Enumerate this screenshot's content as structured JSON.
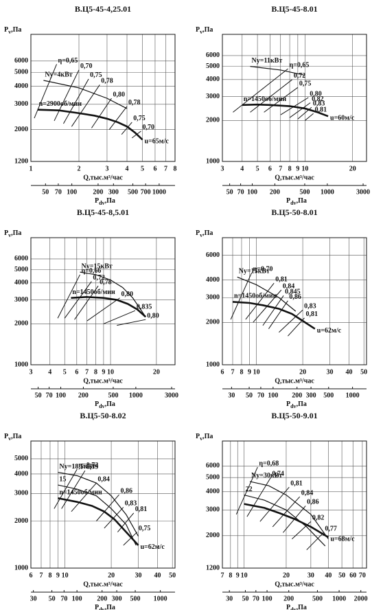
{
  "chart_data": [
    {
      "type": "line",
      "title": "В.Ц5-45-4,25.01",
      "y_label": {
        "main": "P",
        "sub": "v",
        "unit": ",Па"
      },
      "x_label": "Q,тыс.м³/час",
      "x2_label": {
        "main": "P",
        "sub": "dv",
        "unit": ",Па"
      },
      "log_x": true,
      "log_y": true,
      "grid": true,
      "xlim": [
        1,
        8
      ],
      "xticks": [
        1,
        2,
        3,
        4,
        5,
        6,
        7,
        8
      ],
      "ylim": [
        1200,
        9200
      ],
      "yticks": [
        1200,
        2000,
        3000,
        4000,
        5000,
        6000
      ],
      "x2lim": [
        34,
        1520
      ],
      "x2ticks": [
        50,
        70,
        100,
        200,
        300,
        500,
        700,
        1000
      ],
      "series": [
        {
          "name": "n=2900об/мин",
          "end_label": "u=65м/с",
          "x": [
            1.1,
            1.5,
            2,
            2.5,
            3,
            3.5,
            4,
            4.5,
            5
          ],
          "values": [
            2750,
            2720,
            2600,
            2500,
            2380,
            2250,
            2100,
            1900,
            1700
          ]
        },
        {
          "name": "Nу=4кВт",
          "x": [
            1.2,
            2,
            3,
            4
          ],
          "values": [
            4400,
            3900,
            3300,
            2800
          ]
        }
      ],
      "efficiency_lines": [
        {
          "label": "η=0,65",
          "x": [
            1.05,
            1.45
          ],
          "values": [
            2400,
            5700
          ]
        },
        {
          "label": "0,70",
          "x": [
            1.4,
            2.0
          ],
          "values": [
            2300,
            5200
          ]
        },
        {
          "label": "0,75",
          "x": [
            1.6,
            2.3
          ],
          "values": [
            2200,
            4500
          ]
        },
        {
          "label": "0,78",
          "x": [
            1.8,
            2.7
          ],
          "values": [
            2100,
            4100
          ]
        },
        {
          "label": "0,80",
          "x": [
            2.4,
            3.2
          ],
          "values": [
            2050,
            3300
          ]
        },
        {
          "label": "0,78",
          "x": [
            3.1,
            4.0
          ],
          "values": [
            2000,
            2900
          ]
        },
        {
          "label": "0,75",
          "x": [
            3.7,
            4.3
          ],
          "values": [
            1850,
            2250
          ]
        },
        {
          "label": "0,70",
          "x": [
            4.3,
            4.9
          ],
          "values": [
            1750,
            1950
          ]
        }
      ]
    },
    {
      "type": "line",
      "title": "В.Ц5-45-8.01",
      "y_label": {
        "main": "P",
        "sub": "v",
        "unit": ",Па"
      },
      "x_label": "Q,тыс.м³/час",
      "x2_label": {
        "main": "P",
        "sub": "dv",
        "unit": ",Па"
      },
      "log_x": true,
      "log_y": true,
      "grid": true,
      "xlim": [
        3,
        24.5
      ],
      "xticks": [
        3,
        4,
        5,
        6,
        7,
        8,
        9,
        10,
        20
      ],
      "ylim": [
        1000,
        8600
      ],
      "yticks": [
        1000,
        2000,
        3000,
        4000,
        5000,
        6000
      ],
      "x2lim": [
        40,
        3330
      ],
      "x2ticks": [
        50,
        70,
        100,
        200,
        500,
        1000,
        3000
      ],
      "series": [
        {
          "name": "n=1450об/мин",
          "end_label": "u=60м/с",
          "x": [
            4,
            5,
            6,
            8,
            10,
            12,
            14
          ],
          "values": [
            2600,
            2620,
            2600,
            2550,
            2450,
            2300,
            2150
          ]
        },
        {
          "name": "Nу=11кВт",
          "x": [
            4.5,
            7,
            10
          ],
          "values": [
            5000,
            4700,
            4300
          ]
        }
      ],
      "efficiency_lines": [
        {
          "label": "η=0,65",
          "x": [
            3.5,
            7.8
          ],
          "values": [
            2300,
            4800
          ]
        },
        {
          "label": "0,72",
          "x": [
            4.5,
            8.3
          ],
          "values": [
            2300,
            4000
          ]
        },
        {
          "label": "0,75",
          "x": [
            5.5,
            9
          ],
          "values": [
            2300,
            3500
          ]
        },
        {
          "label": "0,80",
          "x": [
            7,
            10.5
          ],
          "values": [
            2200,
            2950
          ]
        },
        {
          "label": "0,82",
          "x": [
            8,
            10.8
          ],
          "values": [
            2100,
            2700
          ]
        },
        {
          "label": "0,83",
          "x": [
            9,
            11
          ],
          "values": [
            2050,
            2500
          ]
        },
        {
          "label": "0,81",
          "x": [
            10,
            11.3
          ],
          "values": [
            2000,
            2250
          ]
        }
      ]
    },
    {
      "type": "line",
      "title": "В.Ц5-45-8,5.01",
      "y_label": {
        "main": "P",
        "sub": "v",
        "unit": ",Па"
      },
      "x_label": "Q,тыс.м³/час",
      "x2_label": {
        "main": "P",
        "sub": "dv",
        "unit": ",Па"
      },
      "log_x": true,
      "log_y": true,
      "grid": true,
      "xlim": [
        3,
        26.5
      ],
      "xticks": [
        3,
        4,
        5,
        6,
        7,
        8,
        9,
        10,
        20
      ],
      "ylim": [
        1000,
        8600
      ],
      "yticks": [
        1000,
        2000,
        3000,
        4000,
        5000,
        6000
      ],
      "x2lim": [
        40,
        3330
      ],
      "x2ticks": [
        50,
        70,
        100,
        200,
        500,
        1000,
        3000
      ],
      "series": [
        {
          "name": "n=1450об/мин",
          "x": [
            5.5,
            7,
            9,
            11,
            13,
            15,
            17
          ],
          "values": [
            3100,
            3150,
            3100,
            3000,
            2800,
            2550,
            2250
          ]
        },
        {
          "name": "Nу=15кВт",
          "x": [
            6.3,
            8,
            10,
            12,
            14,
            17
          ],
          "values": [
            4800,
            4600,
            4200,
            3700,
            3100,
            2250
          ]
        }
      ],
      "efficiency_lines": [
        {
          "label": "η=0,66",
          "x": [
            4.5,
            6.3
          ],
          "values": [
            2200,
            4600
          ]
        },
        {
          "label": "0,72",
          "x": [
            5,
            7.5
          ],
          "values": [
            2200,
            4100
          ]
        },
        {
          "label": "0,78",
          "x": [
            5.8,
            8.3
          ],
          "values": [
            2150,
            3800
          ]
        },
        {
          "label": "0,80",
          "x": [
            7,
            11.5
          ],
          "values": [
            2100,
            3100
          ]
        },
        {
          "label": "0,835",
          "x": [
            9,
            14.5
          ],
          "values": [
            2000,
            2500
          ]
        },
        {
          "label": "0,80",
          "x": [
            11,
            17
          ],
          "values": [
            1950,
            2150
          ]
        }
      ]
    },
    {
      "type": "line",
      "title": "В.Ц5-50-8.01",
      "y_label": {
        "main": "P",
        "sub": "v",
        "unit": ",Па"
      },
      "x_label": "Q,тыс.м³/час",
      "x2_label": {
        "main": "P",
        "sub": "dv",
        "unit": ",Па"
      },
      "log_x": true,
      "log_y": true,
      "grid": true,
      "xlim": [
        6,
        52
      ],
      "xticks": [
        6,
        7,
        8,
        9,
        10,
        20,
        30,
        40,
        50
      ],
      "ylim": [
        1000,
        8000
      ],
      "yticks": [
        1000,
        2000,
        3000,
        4000,
        6000
      ],
      "x2lim": [
        23,
        1500
      ],
      "x2ticks": [
        30,
        50,
        70,
        100,
        200,
        300,
        500,
        1000
      ],
      "series": [
        {
          "name": "n=1450об/мин",
          "end_label": "u=62м/с",
          "x": [
            7,
            9,
            11,
            14,
            17,
            20,
            24
          ],
          "values": [
            2800,
            2750,
            2650,
            2500,
            2300,
            2050,
            1800
          ]
        },
        {
          "name": "Nу=15кВт",
          "x": [
            7.5,
            10,
            14,
            18
          ],
          "values": [
            4200,
            3700,
            3000,
            2400
          ]
        }
      ],
      "efficiency_lines": [
        {
          "label": "η=0,70",
          "x": [
            6.8,
            9.3
          ],
          "values": [
            2100,
            4500
          ]
        },
        {
          "label": "0,81",
          "x": [
            8.5,
            13
          ],
          "values": [
            2100,
            3800
          ]
        },
        {
          "label": "0,84",
          "x": [
            9.5,
            14.5
          ],
          "values": [
            2000,
            3400
          ]
        },
        {
          "label": "0,845",
          "x": [
            11,
            15
          ],
          "values": [
            1900,
            3100
          ]
        },
        {
          "label": "0,86",
          "x": [
            12,
            16
          ],
          "values": [
            1800,
            2850
          ]
        },
        {
          "label": "0,83",
          "x": [
            14,
            20
          ],
          "values": [
            1700,
            2450
          ]
        },
        {
          "label": "0,81",
          "x": [
            16,
            20.5
          ],
          "values": [
            1600,
            2150
          ]
        }
      ]
    },
    {
      "type": "line",
      "title": "В.Ц5-50-8.02",
      "y_label": {
        "main": "P",
        "sub": "v",
        "unit": ",Па"
      },
      "x_label": "Q,тыс.м³/час",
      "x2_label": {
        "main": "P",
        "sub": "dv",
        "unit": ",Па"
      },
      "log_x": true,
      "log_y": true,
      "grid": true,
      "xlim": [
        6,
        52
      ],
      "xticks": [
        6,
        7,
        8,
        9,
        10,
        20,
        30,
        40,
        50
      ],
      "ylim": [
        1000,
        6500
      ],
      "yticks": [
        1000,
        2000,
        3000,
        4000,
        5000
      ],
      "x2lim": [
        28,
        1500
      ],
      "x2ticks": [
        30,
        50,
        70,
        100,
        200,
        300,
        500,
        1000
      ],
      "series": [
        {
          "name": "n=1450об/мин",
          "end_label": "u=62м/с",
          "x": [
            9,
            12,
            15,
            18,
            21,
            25,
            30
          ],
          "values": [
            2800,
            2650,
            2500,
            2300,
            2050,
            1700,
            1400
          ]
        },
        {
          "name": "Nу=18,5кВт",
          "x": [
            9,
            12,
            16,
            20,
            25,
            30
          ],
          "values": [
            4100,
            3900,
            3500,
            2900,
            2200,
            1600
          ]
        },
        {
          "name": "15",
          "x": [
            9,
            12,
            16,
            20,
            25,
            29
          ],
          "values": [
            3400,
            3200,
            2900,
            2400,
            1900,
            1400
          ]
        }
      ],
      "efficiency_lines": [
        {
          "label": "η=0,72",
          "x": [
            8.5,
            12
          ],
          "values": [
            2400,
            4300
          ]
        },
        {
          "label": "0,79",
          "x": [
            9.5,
            13.5
          ],
          "values": [
            2400,
            4200
          ]
        },
        {
          "label": "0,84",
          "x": [
            11,
            16
          ],
          "values": [
            2300,
            3500
          ]
        },
        {
          "label": "0,86",
          "x": [
            16,
            22.5
          ],
          "values": [
            2000,
            2950
          ]
        },
        {
          "label": "0,83",
          "x": [
            18,
            24
          ],
          "values": [
            1800,
            2450
          ]
        },
        {
          "label": "0,81",
          "x": [
            22,
            28
          ],
          "values": [
            1700,
            2250
          ]
        },
        {
          "label": "0,75",
          "x": [
            24,
            29.5
          ],
          "values": [
            1400,
            1700
          ]
        }
      ]
    },
    {
      "type": "line",
      "title": "В.Ц5-50-9.01",
      "y_label": {
        "main": "P",
        "sub": "v",
        "unit": ",Па"
      },
      "x_label": "Q,тыс.м³/час",
      "x2_label": {
        "main": "P",
        "sub": "dv",
        "unit": ",Па"
      },
      "log_x": true,
      "log_y": true,
      "grid": true,
      "xlim": [
        7,
        75
      ],
      "xticks": [
        7,
        8,
        9,
        10,
        20,
        30,
        40,
        50,
        60,
        70
      ],
      "ylim": [
        1200,
        8900
      ],
      "yticks": [
        1200,
        2000,
        3000,
        4000,
        5000,
        6000
      ],
      "x2lim": [
        24,
        2400
      ],
      "x2ticks": [
        30,
        50,
        70,
        100,
        200,
        500,
        1000,
        2000
      ],
      "series": [
        {
          "end_label": "u=68м/с",
          "x": [
            10,
            14,
            18,
            23,
            30,
            40
          ],
          "values": [
            3300,
            3100,
            2850,
            2600,
            2300,
            1950
          ]
        },
        {
          "name": "Nу=30кВт",
          "x": [
            11,
            15,
            20,
            30,
            40
          ],
          "values": [
            4700,
            4400,
            3800,
            2800,
            1900
          ]
        },
        {
          "name": "22",
          "x": [
            10,
            14,
            20,
            28,
            38
          ],
          "values": [
            3800,
            3500,
            3000,
            2300,
            1700
          ]
        }
      ],
      "efficiency_lines": [
        {
          "label": "η=0,68",
          "x": [
            8.8,
            12.5
          ],
          "values": [
            2800,
            5900
          ]
        },
        {
          "label": "0,74",
          "x": [
            10.5,
            15.5
          ],
          "values": [
            2700,
            5000
          ]
        },
        {
          "label": "0,81",
          "x": [
            13,
            21
          ],
          "values": [
            2500,
            4300
          ]
        },
        {
          "label": "0,84",
          "x": [
            16,
            25
          ],
          "values": [
            2300,
            3700
          ]
        },
        {
          "label": "0,86",
          "x": [
            19,
            27.5
          ],
          "values": [
            2100,
            3200
          ]
        },
        {
          "label": "0,82",
          "x": [
            22,
            30
          ],
          "values": [
            1900,
            2500
          ]
        },
        {
          "label": "0,77",
          "x": [
            28,
            37
          ],
          "values": [
            1600,
            2100
          ]
        }
      ]
    }
  ]
}
